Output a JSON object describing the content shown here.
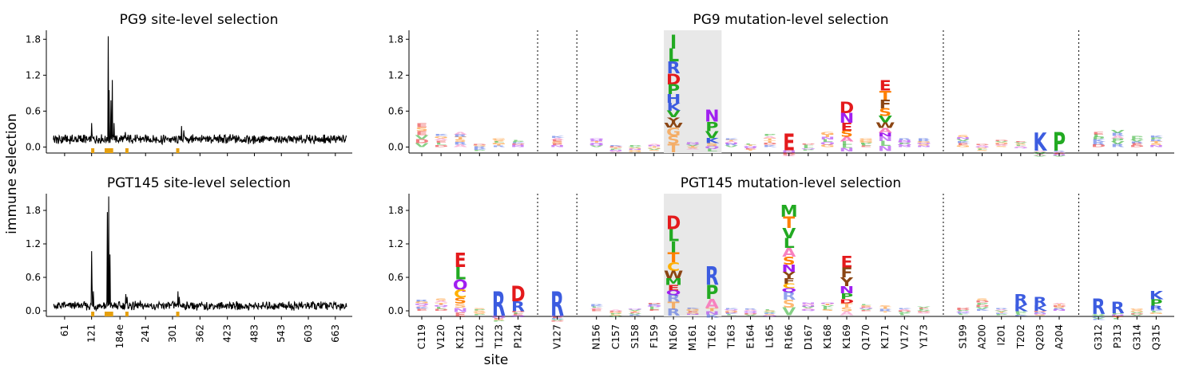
{
  "figure": {
    "ylabel": "immune selection",
    "xlabel": "site"
  },
  "chart_data": [
    {
      "id": "pg9-site",
      "type": "line",
      "title": "PG9 site-level selection",
      "ylim": [
        -0.1,
        1.95
      ],
      "yticks": [
        "0.0",
        "0.6",
        "1.2",
        "1.8"
      ],
      "xticks": [
        "61",
        "121",
        "184e",
        "241",
        "301",
        "362",
        "423",
        "483",
        "543",
        "603",
        "663"
      ],
      "series": [
        {
          "baseline": 0.1,
          "peaks": [
            [
              121,
              0.4
            ],
            [
              158,
              1.85
            ],
            [
              160,
              0.95
            ],
            [
              164,
              0.78
            ],
            [
              167,
              1.12
            ],
            [
              171,
              0.4
            ],
            [
              196,
              0.25
            ],
            [
              321,
              0.35
            ],
            [
              326,
              0.28
            ]
          ]
        }
      ],
      "highlight_color": "#e6a00e",
      "highlight_sites": [
        [
          120,
          126
        ],
        [
          150,
          169
        ],
        [
          196,
          201
        ],
        [
          309,
          313
        ]
      ]
    },
    {
      "id": "pgt145-site",
      "type": "line",
      "title": "PGT145 site-level selection",
      "ylim": [
        -0.1,
        2.1
      ],
      "yticks": [
        "0.0",
        "0.6",
        "1.2",
        "1.8"
      ],
      "xticks": [
        "61",
        "121",
        "184e",
        "241",
        "301",
        "362",
        "423",
        "483",
        "543",
        "603",
        "663"
      ],
      "series": [
        {
          "baseline": 0.06,
          "peaks": [
            [
              121,
              1.07
            ],
            [
              122,
              0.5
            ],
            [
              125,
              0.35
            ],
            [
              156,
              1.77
            ],
            [
              159,
              2.05
            ],
            [
              162,
              1.01
            ],
            [
              197,
              0.3
            ],
            [
              200,
              0.25
            ],
            [
              313,
              0.35
            ],
            [
              316,
              0.25
            ]
          ]
        }
      ],
      "highlight_color": "#e6a00e",
      "highlight_sites": [
        [
          120,
          126
        ],
        [
          150,
          169
        ],
        [
          196,
          201
        ],
        [
          309,
          313
        ]
      ]
    },
    {
      "id": "pg9-mutation",
      "type": "logo",
      "title": "PG9 mutation-level selection",
      "ylim": [
        -0.1,
        1.95
      ],
      "yticks": [
        "0.0",
        "0.6",
        "1.2",
        "1.8"
      ],
      "sites": [
        "C119",
        "V120",
        "K121",
        "L122",
        "T123",
        "P124",
        "V127",
        "N156",
        "C157",
        "S158",
        "F159",
        "N160",
        "M161",
        "T162",
        "T163",
        "E164",
        "L165",
        "R166",
        "D167",
        "K168",
        "K169",
        "Q170",
        "K171",
        "V172",
        "Y173",
        "S199",
        "A200",
        "I201",
        "T202",
        "Q203",
        "A204",
        "G312",
        "P313",
        "G314",
        "Q315"
      ],
      "stack_heights": [
        0.4,
        0.22,
        0.25,
        0.05,
        0.14,
        0.12,
        0.18,
        0.14,
        0.03,
        0.03,
        0.05,
        1.88,
        0.08,
        0.62,
        0.14,
        0.06,
        0.22,
        0.22,
        0.06,
        0.25,
        0.75,
        0.14,
        1.12,
        0.14,
        0.14,
        0.2,
        0.05,
        0.12,
        0.1,
        0.24,
        0.25,
        0.25,
        0.28,
        0.18,
        0.19
      ],
      "top_letters": {
        "N160": [
          "I",
          "L",
          "R",
          "D",
          "P",
          "H",
          "K",
          "V",
          "Y",
          "W"
        ],
        "T162": [
          "N",
          "P",
          "V",
          "K"
        ],
        "R166": [
          "E"
        ],
        "K169": [
          "D",
          "N",
          "E",
          "S",
          "A"
        ],
        "K171": [
          "E",
          "T",
          "F",
          "S",
          "V",
          "W",
          "A",
          "N"
        ],
        "A204": [
          "P"
        ],
        "Q203": [
          "K"
        ]
      },
      "shaded_sites": [
        "N160",
        "M161",
        "T162"
      ],
      "groups_after": [
        "P124",
        "V127",
        "Y173",
        "A204"
      ]
    },
    {
      "id": "pgt145-mutation",
      "type": "logo",
      "title": "PGT145 mutation-level selection",
      "ylim": [
        -0.1,
        2.1
      ],
      "yticks": [
        "0.0",
        "0.6",
        "1.2",
        "1.8"
      ],
      "sites": [
        "C119",
        "V120",
        "K121",
        "L122",
        "T123",
        "P124",
        "V127",
        "N156",
        "C157",
        "S158",
        "F159",
        "N160",
        "M161",
        "T162",
        "T163",
        "E164",
        "L165",
        "R166",
        "D167",
        "K168",
        "K169",
        "Q170",
        "K171",
        "V172",
        "Y173",
        "S199",
        "A200",
        "I201",
        "T202",
        "Q203",
        "A204",
        "G312",
        "P313",
        "G314",
        "Q315"
      ],
      "stack_heights": [
        0.2,
        0.22,
        1.05,
        0.05,
        0.35,
        0.45,
        0.35,
        0.12,
        0.02,
        0.04,
        0.14,
        1.7,
        0.06,
        0.8,
        0.05,
        0.04,
        0.03,
        1.9,
        0.15,
        0.15,
        0.98,
        0.12,
        0.1,
        0.05,
        0.08,
        0.06,
        0.22,
        0.05,
        0.3,
        0.25,
        0.14,
        0.22,
        0.16,
        0.04,
        0.35
      ],
      "top_letters": {
        "K121": [
          "E",
          "L",
          "Q",
          "C",
          "S"
        ],
        "T123": [
          "R"
        ],
        "P124": [
          "D",
          "R"
        ],
        "V127": [
          "R"
        ],
        "N160": [
          "D",
          "L",
          "I",
          "T",
          "C",
          "W",
          "M",
          "E",
          "Q"
        ],
        "T162": [
          "R",
          "P",
          "A"
        ],
        "R166": [
          "M",
          "T",
          "V",
          "L",
          "A",
          "S",
          "N",
          "Y",
          "F",
          "C",
          "Q"
        ],
        "K169": [
          "E",
          "F",
          "Y",
          "N",
          "P",
          "D"
        ],
        "T202": [
          "R",
          "K"
        ],
        "Q203": [
          "R",
          "K"
        ],
        "G312": [
          "R"
        ],
        "P313": [
          "R"
        ],
        "Q315": [
          "K",
          "P",
          "R"
        ]
      },
      "shaded_sites": [
        "N160",
        "M161",
        "T162"
      ],
      "groups_after": [
        "P124",
        "V127",
        "Y173",
        "A204"
      ]
    }
  ],
  "amino_acid_colors": {
    "D": "#e41a1c",
    "E": "#e41a1c",
    "K": "#3c5ce0",
    "R": "#3c5ce0",
    "H": "#3c5ce0",
    "N": "#a020f0",
    "Q": "#a020f0",
    "S": "#ff7f00",
    "T": "#ff7f00",
    "A": "#f781bf",
    "C": "#ffb000",
    "G": "#ff7f00",
    "I": "#22aa22",
    "L": "#22aa22",
    "M": "#22aa22",
    "V": "#22aa22",
    "F": "#8b4513",
    "W": "#8b4513",
    "Y": "#8b4513",
    "P": "#22aa22"
  }
}
